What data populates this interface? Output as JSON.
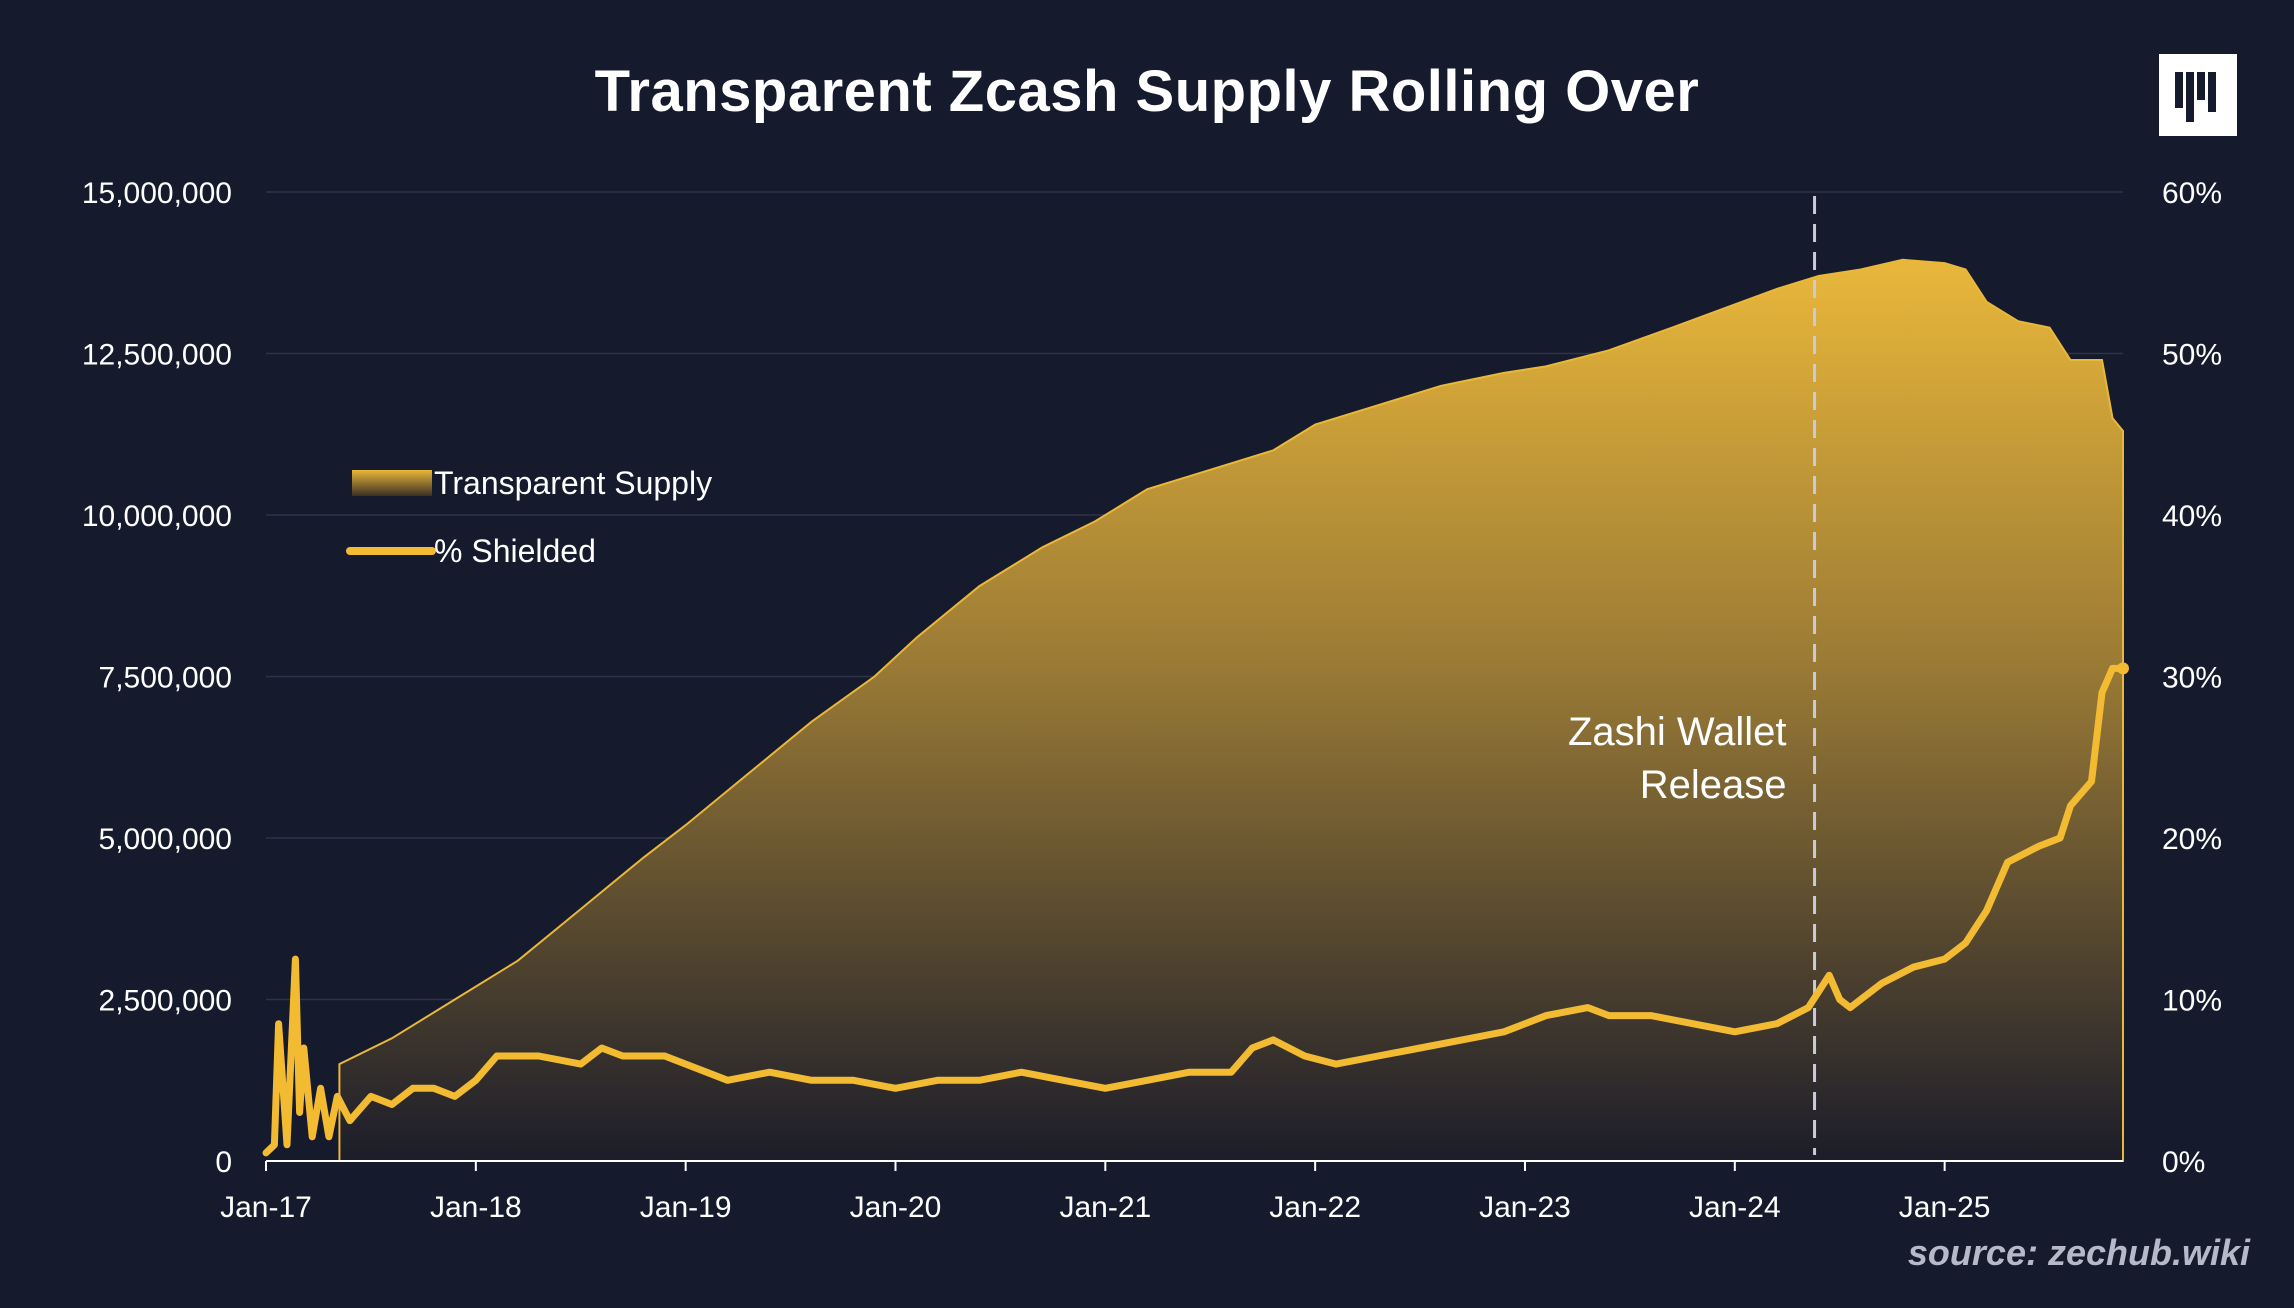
{
  "header": {
    "title": "Transparent Zcash Supply Rolling Over"
  },
  "logo": {
    "icon": "brand-logo-icon"
  },
  "footer": {
    "source": "source: zechub.wiki"
  },
  "chart_data": {
    "type": "area",
    "title": "Transparent Zcash Supply Rolling Over",
    "x_ticks": [
      "Jan-17",
      "Jan-18",
      "Jan-19",
      "Jan-20",
      "Jan-21",
      "Jan-22",
      "Jan-23",
      "Jan-24",
      "Jan-25"
    ],
    "x_range": [
      2017.0,
      2025.85
    ],
    "y_left": {
      "ticks": [
        "0",
        "2,500,000",
        "5,000,000",
        "7,500,000",
        "10,000,000",
        "12,500,000",
        "15,000,000"
      ],
      "min": 0,
      "max": 15000000
    },
    "y_right": {
      "ticks": [
        "0%",
        "10%",
        "20%",
        "30%",
        "40%",
        "50%",
        "60%"
      ],
      "min": 0,
      "max": 60
    },
    "legend": [
      {
        "label": "Transparent Supply",
        "kind": "area"
      },
      {
        "label": "% Shielded",
        "kind": "line"
      }
    ],
    "series": [
      {
        "name": "Transparent Supply",
        "axis": "left",
        "color": "#e9b73a",
        "x": [
          2017.35,
          2017.6,
          2017.9,
          2018.2,
          2018.5,
          2018.8,
          2019.0,
          2019.3,
          2019.6,
          2019.9,
          2020.1,
          2020.4,
          2020.7,
          2020.95,
          2021.2,
          2021.5,
          2021.8,
          2022.0,
          2022.3,
          2022.6,
          2022.9,
          2023.1,
          2023.4,
          2023.7,
          2023.95,
          2024.2,
          2024.4,
          2024.6,
          2024.8,
          2025.0,
          2025.1,
          2025.2,
          2025.35,
          2025.5,
          2025.6,
          2025.75,
          2025.8,
          2025.85
        ],
        "values": [
          1500000,
          1900000,
          2500000,
          3100000,
          3900000,
          4700000,
          5200000,
          6000000,
          6800000,
          7500000,
          8100000,
          8900000,
          9500000,
          9900000,
          10400000,
          10700000,
          11000000,
          11400000,
          11700000,
          12000000,
          12200000,
          12300000,
          12550000,
          12900000,
          13200000,
          13500000,
          13700000,
          13800000,
          13950000,
          13900000,
          13800000,
          13300000,
          13000000,
          12900000,
          12400000,
          12400000,
          11500000,
          11300000
        ]
      },
      {
        "name": "% Shielded",
        "axis": "right",
        "color": "#f2bb31",
        "x": [
          2017.0,
          2017.04,
          2017.06,
          2017.1,
          2017.14,
          2017.16,
          2017.18,
          2017.22,
          2017.26,
          2017.3,
          2017.34,
          2017.4,
          2017.5,
          2017.6,
          2017.7,
          2017.8,
          2017.9,
          2018.0,
          2018.1,
          2018.2,
          2018.3,
          2018.5,
          2018.6,
          2018.7,
          2018.8,
          2018.9,
          2019.0,
          2019.2,
          2019.4,
          2019.6,
          2019.8,
          2020.0,
          2020.2,
          2020.4,
          2020.6,
          2020.8,
          2021.0,
          2021.2,
          2021.4,
          2021.6,
          2021.7,
          2021.8,
          2021.95,
          2022.1,
          2022.3,
          2022.5,
          2022.7,
          2022.9,
          2023.1,
          2023.3,
          2023.4,
          2023.6,
          2023.8,
          2024.0,
          2024.2,
          2024.35,
          2024.45,
          2024.5,
          2024.55,
          2024.6,
          2024.7,
          2024.85,
          2025.0,
          2025.1,
          2025.2,
          2025.3,
          2025.45,
          2025.55,
          2025.6,
          2025.7,
          2025.75,
          2025.8,
          2025.85
        ],
        "values": [
          0.5,
          1.0,
          8.5,
          1.0,
          12.5,
          3.0,
          7.0,
          1.5,
          4.5,
          1.5,
          4.0,
          2.5,
          4.0,
          3.5,
          4.5,
          4.5,
          4.0,
          5.0,
          6.5,
          6.5,
          6.5,
          6.0,
          7.0,
          6.5,
          6.5,
          6.5,
          6.0,
          5.0,
          5.5,
          5.0,
          5.0,
          4.5,
          5.0,
          5.0,
          5.5,
          5.0,
          4.5,
          5.0,
          5.5,
          5.5,
          7.0,
          7.5,
          6.5,
          6.0,
          6.5,
          7.0,
          7.5,
          8.0,
          9.0,
          9.5,
          9.0,
          9.0,
          8.5,
          8.0,
          8.5,
          9.5,
          11.5,
          10.0,
          9.5,
          10.0,
          11.0,
          12.0,
          12.5,
          13.5,
          15.5,
          18.5,
          19.5,
          20.0,
          22.0,
          23.5,
          29.0,
          30.5,
          30.5
        ]
      }
    ],
    "annotation": {
      "x": 2024.38,
      "label_line1": "Zashi Wallet",
      "label_line2": "Release",
      "style": "dashed-vertical"
    }
  }
}
